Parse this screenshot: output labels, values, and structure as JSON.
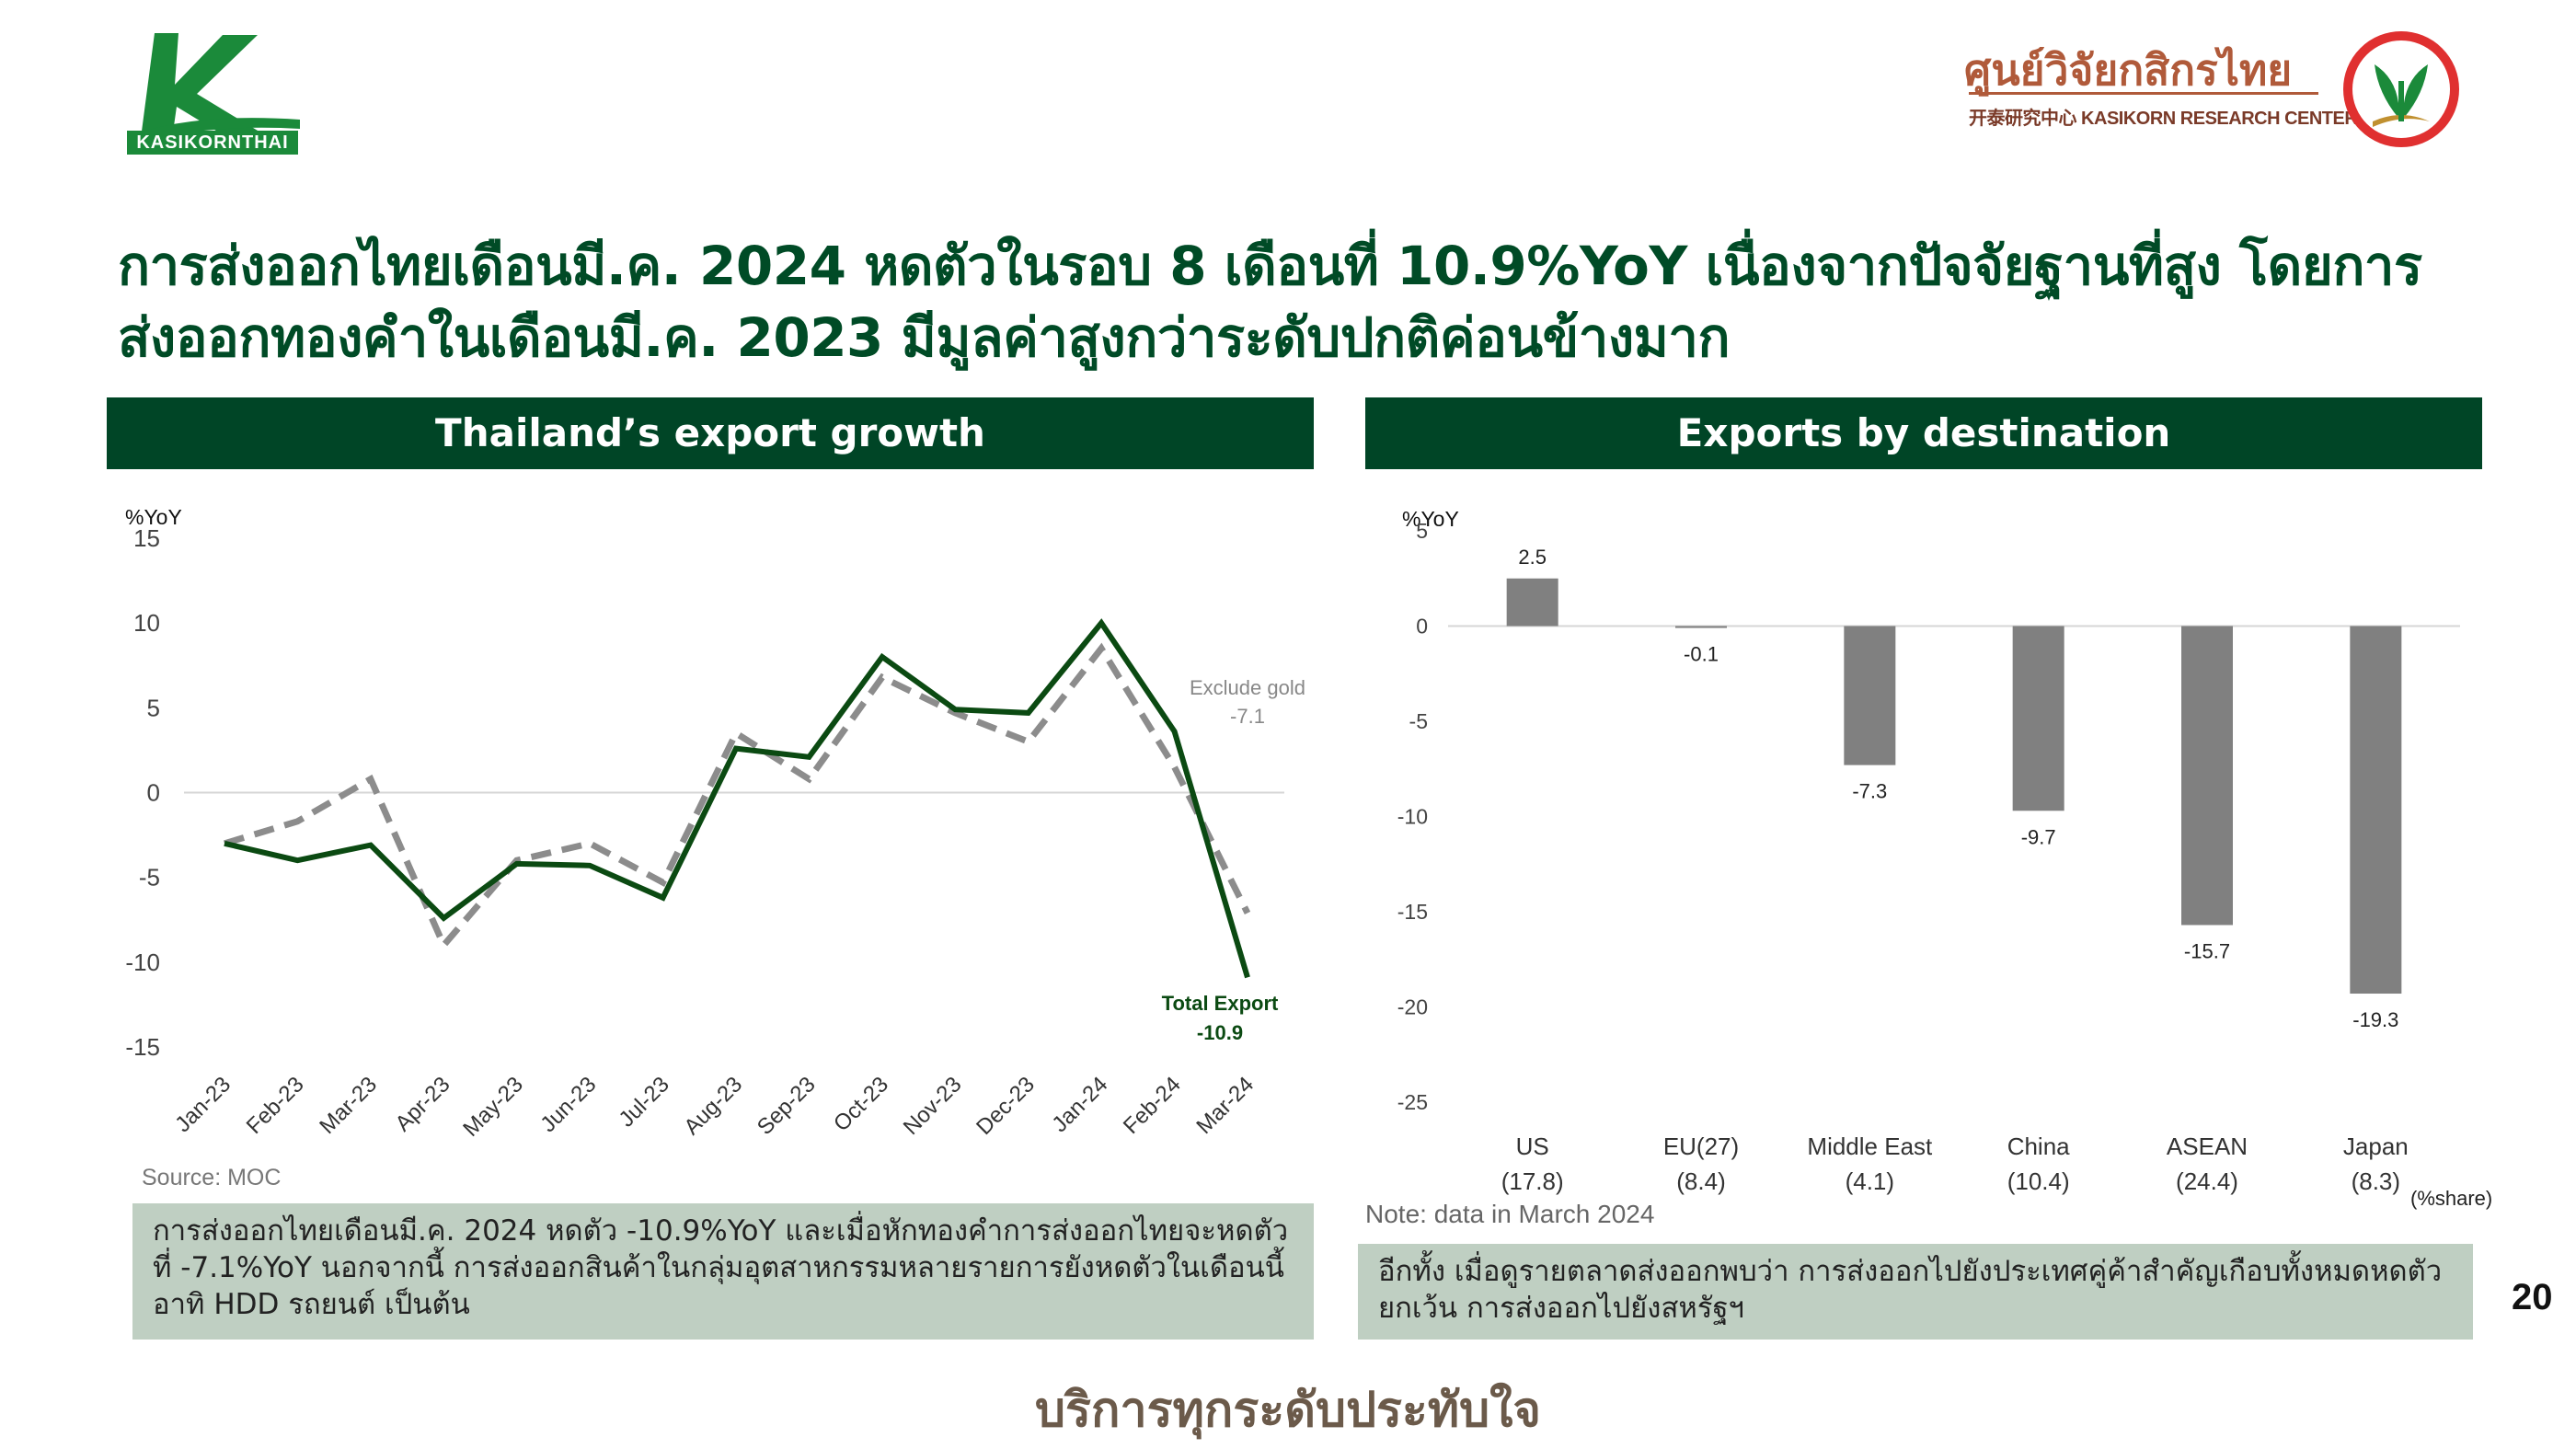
{
  "brand": {
    "left_logo_text": "KASIKORNTHAI",
    "right_logo_thai": "ศูนย์วิจัยกสิกรไทย",
    "right_logo_en": "开泰研究中心 KASIKORN RESEARCH CENTER",
    "green": "#004526",
    "accent_green": "#1b8a3a",
    "right_logo_color": "#e03030"
  },
  "headline": "การส่งออกไทยเดือนมี.ค. 2024 หดตัวในรอบ 8 เดือนที่ 10.9%YoY เนื่องจากปัจจัยฐานที่สูง โดยการส่งออกทองคำในเดือนมี.ค. 2023 มีมูลค่าสูงกว่าระดับปกติค่อนข้างมาก",
  "left_panel": {
    "title": "Thailand’s export growth",
    "source": "Source: MOC",
    "summary": "การส่งออกไทยเดือนมี.ค. 2024 หดตัว -10.9%YoY และเมื่อหักทองคำการส่งออกไทยจะหดตัวที่ -7.1%YoY นอกจากนี้ การส่งออกสินค้าในกลุ่มอุตสาหกรรมหลายรายการยังหดตัวในเดือนนี้ อาทิ HDD รถยนต์ เป็นต้น"
  },
  "right_panel": {
    "title": "Exports by destination",
    "note": "Note: data in March 2024",
    "share_label": "(%share)",
    "summary": "อีกทั้ง เมื่อดูรายตลาดส่งออกพบว่า การส่งออกไปยังประเทศคู่ค้าสำคัญเกือบทั้งหมดหดตัว ยกเว้น การส่งออกไปยังสหรัฐฯ"
  },
  "page_number": "20",
  "tagline": "บริการทุกระดับประทับใจ",
  "chart_data": [
    {
      "type": "line",
      "ylabel": "%YoY",
      "ylim": [
        -15,
        15
      ],
      "yticks": [
        15,
        10,
        5,
        0,
        -5,
        -10,
        -15
      ],
      "grid": false,
      "categories": [
        "Jan-23",
        "Feb-23",
        "Mar-23",
        "Apr-23",
        "May-23",
        "Jun-23",
        "Jul-23",
        "Aug-23",
        "Sep-23",
        "Oct-23",
        "Nov-23",
        "Dec-23",
        "Jan-24",
        "Feb-24",
        "Mar-24"
      ],
      "series": [
        {
          "name": "Total Export",
          "color": "#0b4a12",
          "style": "solid",
          "values": [
            -3.0,
            -4.0,
            -3.1,
            -7.4,
            -4.2,
            -4.3,
            -6.2,
            2.6,
            2.1,
            8.0,
            4.9,
            4.7,
            10.0,
            3.6,
            -10.9
          ],
          "end_label": "-10.9"
        },
        {
          "name": "Exclude gold",
          "color": "#8c8c8c",
          "style": "dashed",
          "values": [
            -3.0,
            -1.7,
            0.8,
            -9.0,
            -4.0,
            -3.0,
            -5.3,
            3.5,
            0.8,
            6.8,
            4.7,
            3.0,
            8.5,
            1.5,
            -7.1
          ],
          "end_label": "-7.1"
        }
      ]
    },
    {
      "type": "bar",
      "ylabel": "%YoY",
      "ylim": [
        -25,
        5
      ],
      "yticks": [
        5,
        0,
        -5,
        -10,
        -15,
        -20,
        -25
      ],
      "grid": false,
      "bar_color": "#808080",
      "categories": [
        "US",
        "EU(27)",
        "Middle East",
        "China",
        "ASEAN",
        "Japan"
      ],
      "shares": [
        "(17.8)",
        "(8.4)",
        "(4.1)",
        "(10.4)",
        "(24.4)",
        "(8.3)"
      ],
      "values": [
        2.5,
        -0.1,
        -7.3,
        -9.7,
        -15.7,
        -19.3
      ],
      "value_labels": [
        "2.5",
        "-0.1",
        "-7.3",
        "-9.7",
        "-15.7",
        "-19.3"
      ]
    }
  ]
}
